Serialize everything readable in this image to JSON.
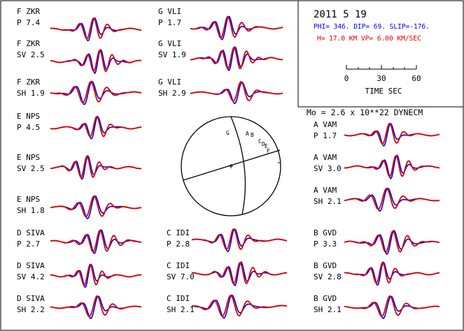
{
  "header": {
    "date": "2011  5 19",
    "mechanism": "PHI= 346. DIP= 69. SLIP=-176.",
    "depth_velocity": "H= 17.0 KM  VP= 6.00 KM/SEC",
    "moment": "Mo =  2.6 x 10**22 DYNECM"
  },
  "time_scale": {
    "ticks": [
      "0",
      "30",
      "60"
    ],
    "label": "TIME  SEC"
  },
  "colors": {
    "observed": "#0000dd",
    "synthetic": "#dd0000",
    "frame": "#000000"
  },
  "focal_sphere": {
    "station_labels": [
      "G",
      "A",
      "B",
      "C",
      "D",
      "E",
      "F"
    ]
  },
  "panels": [
    {
      "station": "F  ZKR",
      "phase": "P",
      "amp": "7.4"
    },
    {
      "station": "F  ZKR",
      "phase": "SV",
      "amp": "2.5"
    },
    {
      "station": "F  ZKR",
      "phase": "SH",
      "amp": "1.9"
    },
    {
      "station": "E  NPS",
      "phase": "P",
      "amp": "4.5"
    },
    {
      "station": "E  NPS",
      "phase": "SV",
      "amp": "2.5"
    },
    {
      "station": "E  NPS",
      "phase": "SH",
      "amp": "1.8"
    },
    {
      "station": "D  SIVA",
      "phase": "P",
      "amp": "2.7"
    },
    {
      "station": "D  SIVA",
      "phase": "SV",
      "amp": "4.2"
    },
    {
      "station": "D  SIVA",
      "phase": "SH",
      "amp": "2.2"
    },
    {
      "station": "G  VLI",
      "phase": "P",
      "amp": "1.7"
    },
    {
      "station": "G  VLI",
      "phase": "SV",
      "amp": "1.9"
    },
    {
      "station": "G  VLI",
      "phase": "SH",
      "amp": "2.9"
    },
    {
      "station": "C  IDI",
      "phase": "P",
      "amp": "2.8"
    },
    {
      "station": "C  IDI",
      "phase": "SV",
      "amp": "7.0"
    },
    {
      "station": "C  IDI",
      "phase": "SH",
      "amp": "2.1"
    },
    {
      "station": "A  VAM",
      "phase": "P",
      "amp": "1.7"
    },
    {
      "station": "A  VAM",
      "phase": "SV",
      "amp": "3.0"
    },
    {
      "station": "A  VAM",
      "phase": "SH",
      "amp": "2.1"
    },
    {
      "station": "B  GVD",
      "phase": "P",
      "amp": "3.3"
    },
    {
      "station": "B  GVD",
      "phase": "SV",
      "amp": "2.8"
    },
    {
      "station": "B  GVD",
      "phase": "SH",
      "amp": "2.1"
    }
  ]
}
